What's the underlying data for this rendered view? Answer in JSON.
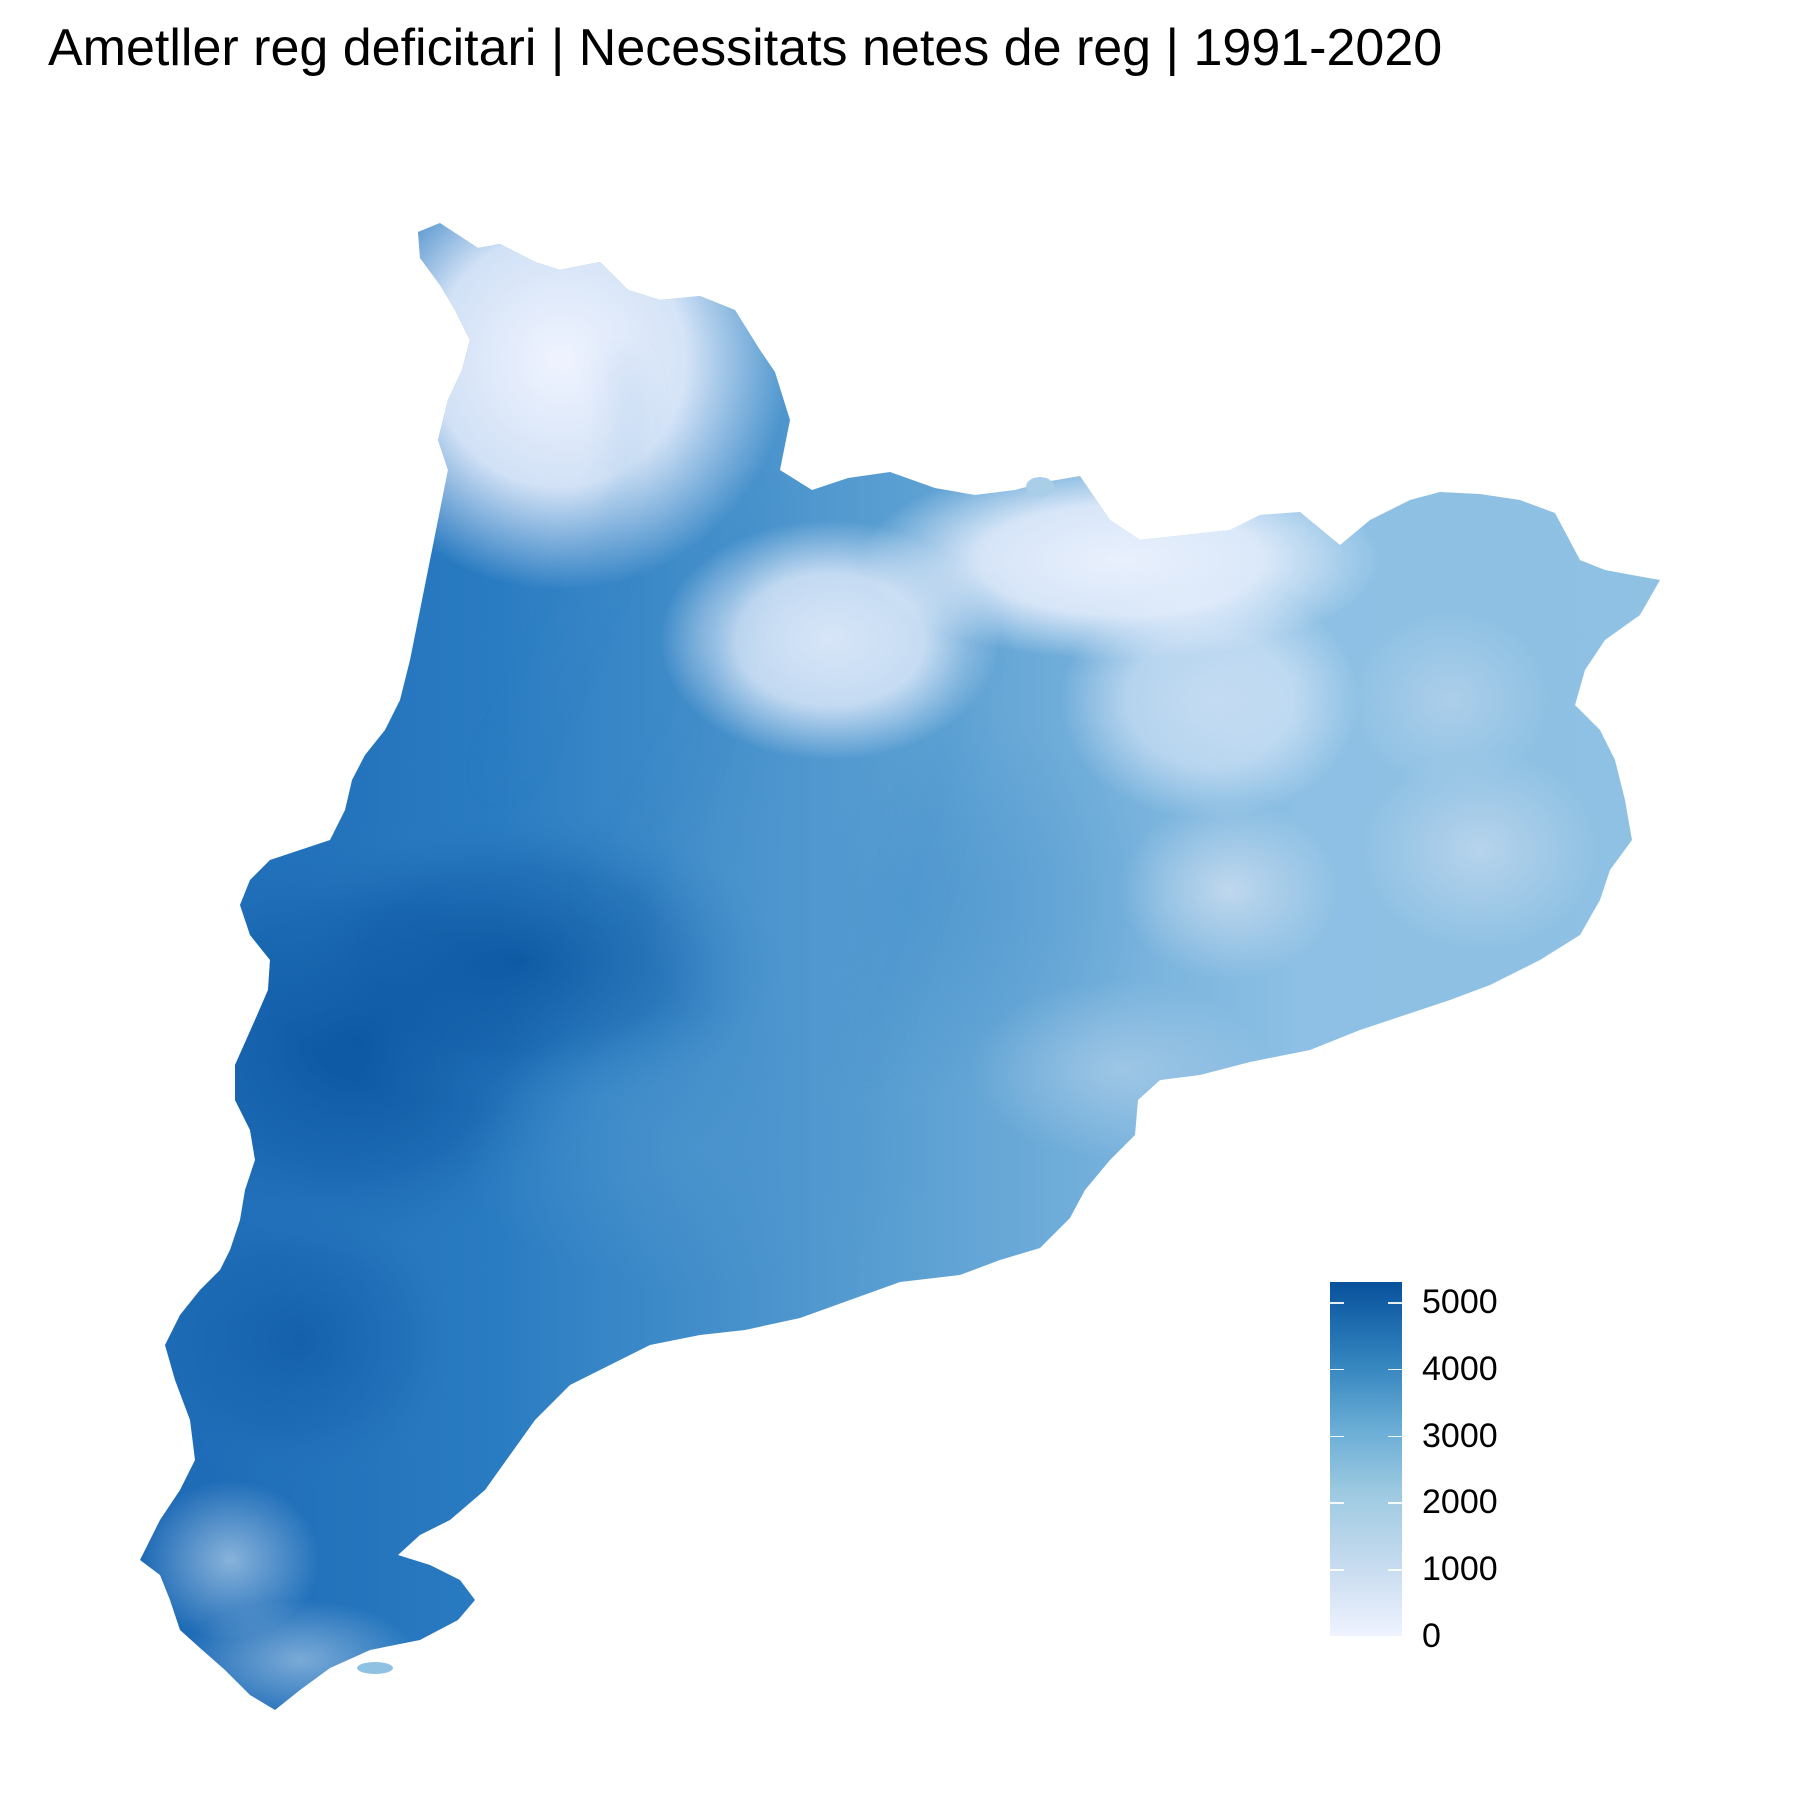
{
  "title": "Ametller reg deficitari | Necessitats netes de reg | 1991-2020",
  "legend": {
    "min": 0,
    "max": 5300,
    "ticks": [
      {
        "value": 0,
        "label": "0"
      },
      {
        "value": 1000,
        "label": "1000"
      },
      {
        "value": 2000,
        "label": "2000"
      },
      {
        "value": 3000,
        "label": "3000"
      },
      {
        "value": 4000,
        "label": "4000"
      },
      {
        "value": 5000,
        "label": "5000"
      }
    ],
    "colors": [
      "#eff3ff",
      "#c6dbef",
      "#9ecae1",
      "#6baed6",
      "#3182bd",
      "#08519c"
    ]
  }
}
